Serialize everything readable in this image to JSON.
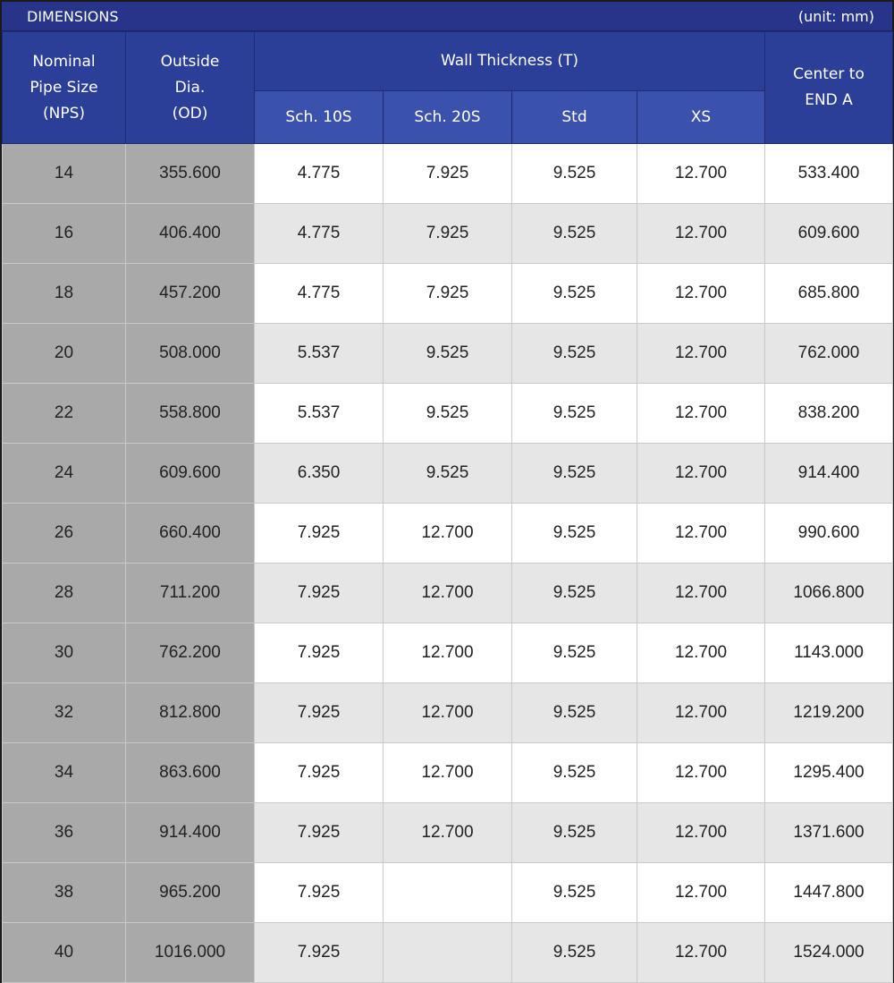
{
  "title_bar": {
    "title": "DIMENSIONS",
    "unit": "(unit: mm)"
  },
  "headers": {
    "nps": [
      "Nominal",
      "Pipe Size",
      "(NPS)"
    ],
    "od": [
      "Outside",
      "Dia.",
      "(OD)"
    ],
    "wall": "Wall Thickness (T)",
    "sch10s": "Sch. 10S",
    "sch20s": "Sch. 20S",
    "std": "Std",
    "xs": "XS",
    "center": [
      "Center to",
      "END A"
    ]
  },
  "rows": [
    [
      "14",
      "355.600",
      "4.775",
      "7.925",
      "9.525",
      "12.700",
      "533.400"
    ],
    [
      "16",
      "406.400",
      "4.775",
      "7.925",
      "9.525",
      "12.700",
      "609.600"
    ],
    [
      "18",
      "457.200",
      "4.775",
      "7.925",
      "9.525",
      "12.700",
      "685.800"
    ],
    [
      "20",
      "508.000",
      "5.537",
      "9.525",
      "9.525",
      "12.700",
      "762.000"
    ],
    [
      "22",
      "558.800",
      "5.537",
      "9.525",
      "9.525",
      "12.700",
      "838.200"
    ],
    [
      "24",
      "609.600",
      "6.350",
      "9.525",
      "9.525",
      "12.700",
      "914.400"
    ],
    [
      "26",
      "660.400",
      "7.925",
      "12.700",
      "9.525",
      "12.700",
      "990.600"
    ],
    [
      "28",
      "711.200",
      "7.925",
      "12.700",
      "9.525",
      "12.700",
      "1066.800"
    ],
    [
      "30",
      "762.200",
      "7.925",
      "12.700",
      "9.525",
      "12.700",
      "1143.000"
    ],
    [
      "32",
      "812.800",
      "7.925",
      "12.700",
      "9.525",
      "12.700",
      "1219.200"
    ],
    [
      "34",
      "863.600",
      "7.925",
      "12.700",
      "9.525",
      "12.700",
      "1295.400"
    ],
    [
      "36",
      "914.400",
      "7.925",
      "12.700",
      "9.525",
      "12.700",
      "1371.600"
    ],
    [
      "38",
      "965.200",
      "7.925",
      "",
      "9.525",
      "12.700",
      "1447.800"
    ],
    [
      "40",
      "1016.000",
      "7.925",
      "",
      "9.525",
      "12.700",
      "1524.000"
    ]
  ],
  "colors": {
    "header_dark": "#2c3f98",
    "header_sub": "#3a52ad",
    "title_bar": "#26358a",
    "key_column": "#a9a9a9",
    "row_alt": "#e6e6e6"
  }
}
